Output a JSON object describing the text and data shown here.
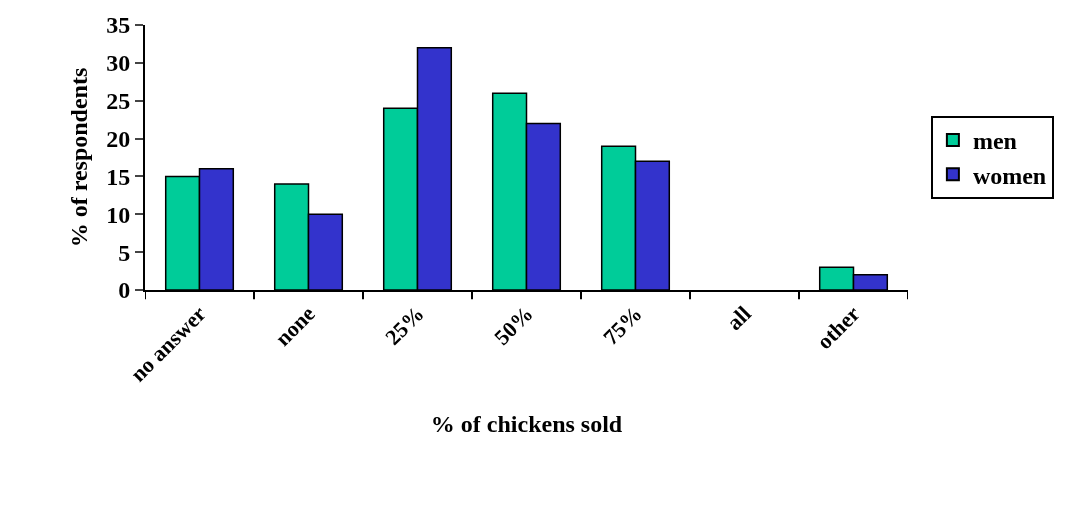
{
  "chart_data": {
    "type": "bar",
    "xlabel": "% of chickens sold",
    "ylabel": "% of respondents",
    "categories": [
      "no answer",
      "none",
      "25%",
      "50%",
      "75%",
      "all",
      "other"
    ],
    "series": [
      {
        "name": "men",
        "color": "#00cc99",
        "values": [
          15,
          14,
          24,
          26,
          19,
          0,
          3
        ]
      },
      {
        "name": "women",
        "color": "#3333cc",
        "values": [
          16,
          10,
          32,
          22,
          17,
          0,
          2
        ]
      }
    ],
    "ylim": [
      0,
      35
    ],
    "yticks": [
      0,
      5,
      10,
      15,
      20,
      25,
      30,
      35
    ],
    "legend": "right"
  }
}
